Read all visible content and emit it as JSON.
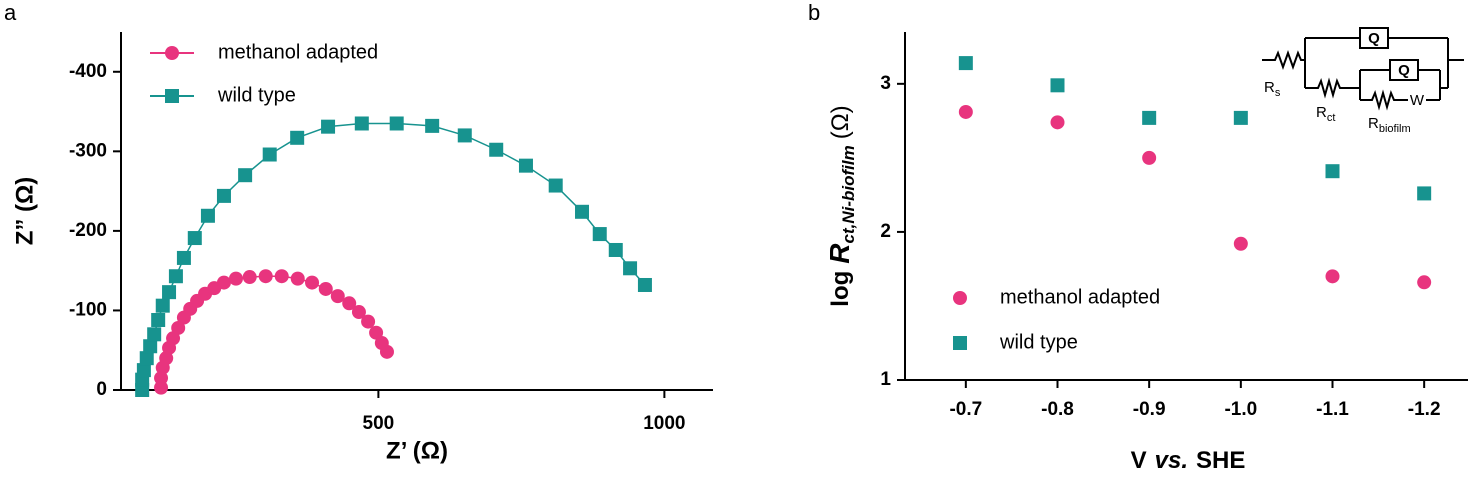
{
  "chart_data": [
    {
      "type": "line",
      "panel_label": "a",
      "x_label": "Z’ (Ω)",
      "y_label": "Z” (Ω)",
      "xlim": [
        50,
        1085
      ],
      "xticks": [
        500,
        1000
      ],
      "ylim": [
        0,
        -450
      ],
      "yticks": [
        0,
        -100,
        -200,
        -300,
        -400
      ],
      "legend": "upper left",
      "series": [
        {
          "name": "methanol adapted",
          "color": "#e8347e",
          "marker": "circle",
          "x": [
            120,
            120,
            123,
            129,
            134,
            141,
            150,
            160,
            171,
            183,
            197,
            213,
            230,
            251,
            275,
            303,
            331,
            359,
            384,
            408,
            429,
            449,
            466,
            482,
            496,
            506,
            515
          ],
          "values": [
            -3,
            -15,
            -28,
            -40,
            -53,
            -65,
            -78,
            -91,
            -102,
            -112,
            -121,
            -128,
            -135,
            -140,
            -142,
            -143,
            -143,
            -140,
            -135,
            -127,
            -118,
            -109,
            -98,
            -86,
            -72,
            -59,
            -48
          ]
        },
        {
          "name": "wild type",
          "color": "#17938f",
          "marker": "square",
          "x": [
            87,
            87,
            90,
            95,
            101,
            108,
            115,
            123,
            134,
            146,
            160,
            179,
            202,
            230,
            267,
            310,
            358,
            412,
            471,
            532,
            594,
            651,
            706,
            758,
            810,
            856,
            887,
            915,
            940,
            966
          ],
          "values": [
            0,
            -13,
            -25,
            -40,
            -55,
            -70,
            -88,
            -106,
            -123,
            -143,
            -166,
            -191,
            -219,
            -244,
            -270,
            -296,
            -317,
            -331,
            -335,
            -335,
            -332,
            -320,
            -302,
            -282,
            -257,
            -224,
            -196,
            -176,
            -153,
            -132
          ]
        }
      ]
    },
    {
      "type": "scatter",
      "panel_label": "b",
      "x_label": {
        "main": "V",
        "italic": "vs.",
        "rest": "SHE"
      },
      "y_label": {
        "prefix": "log",
        "symbol": "R",
        "subscript": "ct,Ni-biofilm",
        "unit": "(Ω)"
      },
      "categories": [
        "-0.7",
        "-0.8",
        "-0.9",
        "-1.0",
        "-1.1",
        "-1.2"
      ],
      "ylim": [
        1,
        3.35
      ],
      "yticks": [
        1,
        2,
        3
      ],
      "legend": "lower left",
      "series": [
        {
          "name": "methanol adapted",
          "color": "#e8347e",
          "marker": "circle",
          "values": [
            2.81,
            2.74,
            2.5,
            1.92,
            1.7,
            1.66
          ]
        },
        {
          "name": "wild type",
          "color": "#17938f",
          "marker": "square",
          "values": [
            3.14,
            2.99,
            2.77,
            2.77,
            2.41,
            2.26
          ]
        }
      ],
      "inset": {
        "rs": {
          "symbol": "R",
          "subscript": "s"
        },
        "rct": {
          "symbol": "R",
          "subscript": "ct"
        },
        "rbio": {
          "symbol": "R",
          "subscript": "biofilm"
        },
        "q1": "Q",
        "q2": "Q",
        "w": "W"
      }
    }
  ]
}
